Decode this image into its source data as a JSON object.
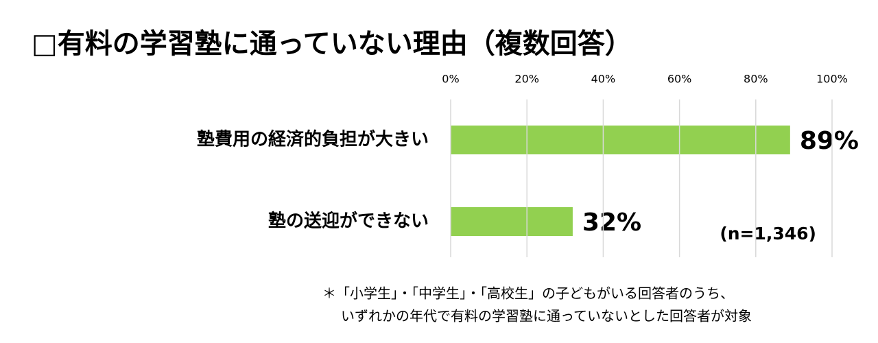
{
  "chart_data": {
    "type": "bar",
    "orientation": "horizontal",
    "title": "□有料の学習塾に通っていない理由（複数回答）",
    "categories": [
      "塾費用の経済的負担が大きい",
      "塾の送迎ができない"
    ],
    "values": [
      89,
      32
    ],
    "value_labels": [
      "89%",
      "32%"
    ],
    "color": "#92d050",
    "xlim": [
      0,
      100
    ],
    "xticks": [
      {
        "value": 0,
        "label": "0%"
      },
      {
        "value": 20,
        "label": "20%"
      },
      {
        "value": 40,
        "label": "40%"
      },
      {
        "value": 60,
        "label": "60%"
      },
      {
        "value": 80,
        "label": "80%"
      },
      {
        "value": 100,
        "label": "100%"
      }
    ],
    "grid": true,
    "annotation": "(n=1,346)",
    "footnotes": [
      "＊「小学生」・「中学生」・「高校生」の子どもがいる回答者のうち、",
      "いずれかの年代で有料の学習塾に通っていないとした回答者が対象"
    ]
  }
}
